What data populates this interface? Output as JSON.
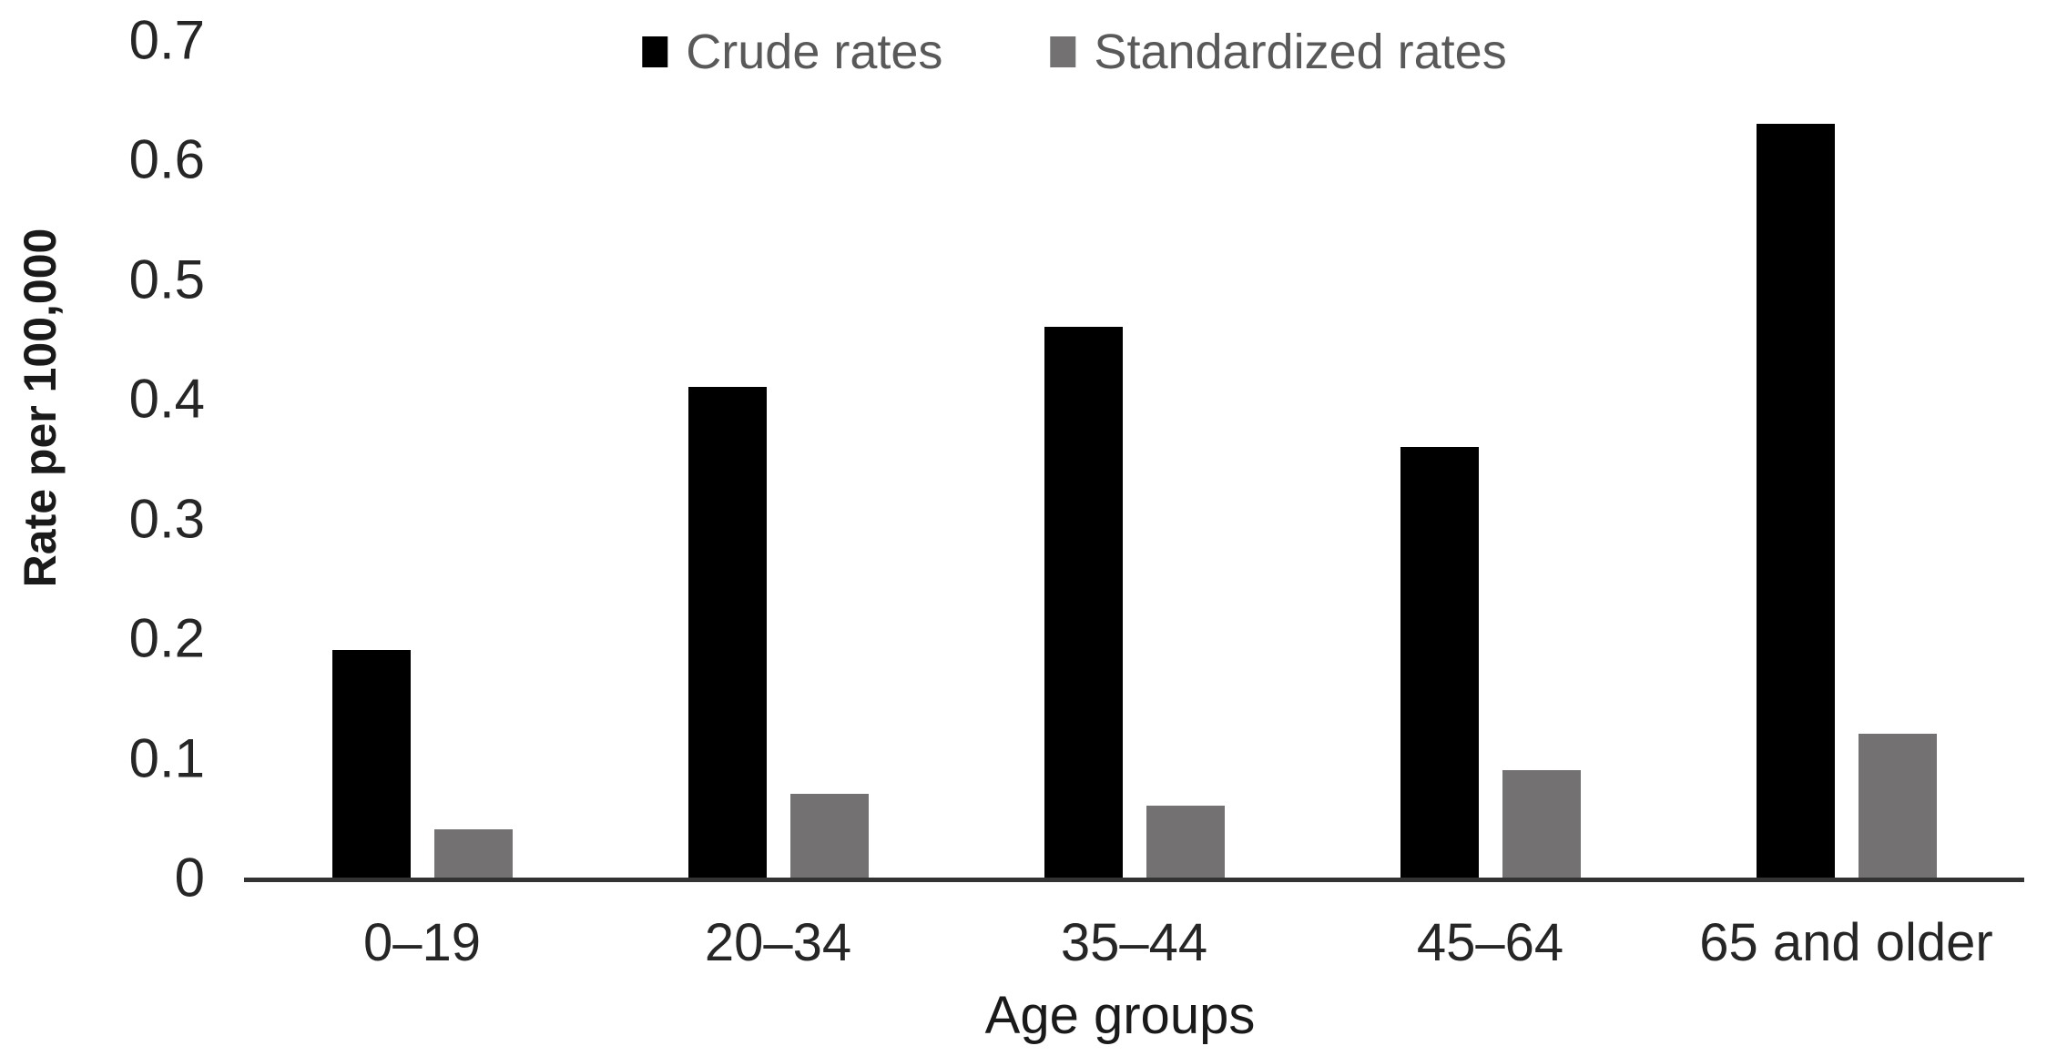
{
  "figure": {
    "background": "#ffffff",
    "axis_color": "#333333",
    "tick_text_color": "#262626",
    "legend_text_color": "#595959"
  },
  "chart_data": {
    "type": "bar",
    "title": "",
    "categories": [
      "0–19",
      "20–34",
      "35–44",
      "45–64",
      "65 and older"
    ],
    "series": [
      {
        "name": "Crude rates",
        "color": "#000000",
        "values": [
          0.19,
          0.41,
          0.46,
          0.36,
          0.63
        ]
      },
      {
        "name": "Standardized rates",
        "color": "#737171",
        "values": [
          0.04,
          0.07,
          0.06,
          0.09,
          0.12
        ]
      }
    ],
    "xlabel": "Age groups",
    "ylabel": "Rate per 100,000",
    "ylim": [
      0,
      0.7
    ],
    "yticks": [
      {
        "value": 0.7,
        "label": "0.7"
      },
      {
        "value": 0.6,
        "label": "0.6"
      },
      {
        "value": 0.5,
        "label": "0.5"
      },
      {
        "value": 0.4,
        "label": "0.4"
      },
      {
        "value": 0.3,
        "label": "0.3"
      },
      {
        "value": 0.2,
        "label": "0.2"
      },
      {
        "value": 0.1,
        "label": "0.1"
      },
      {
        "value": 0,
        "label": "0"
      }
    ],
    "legend_position": "top",
    "grid": false
  }
}
